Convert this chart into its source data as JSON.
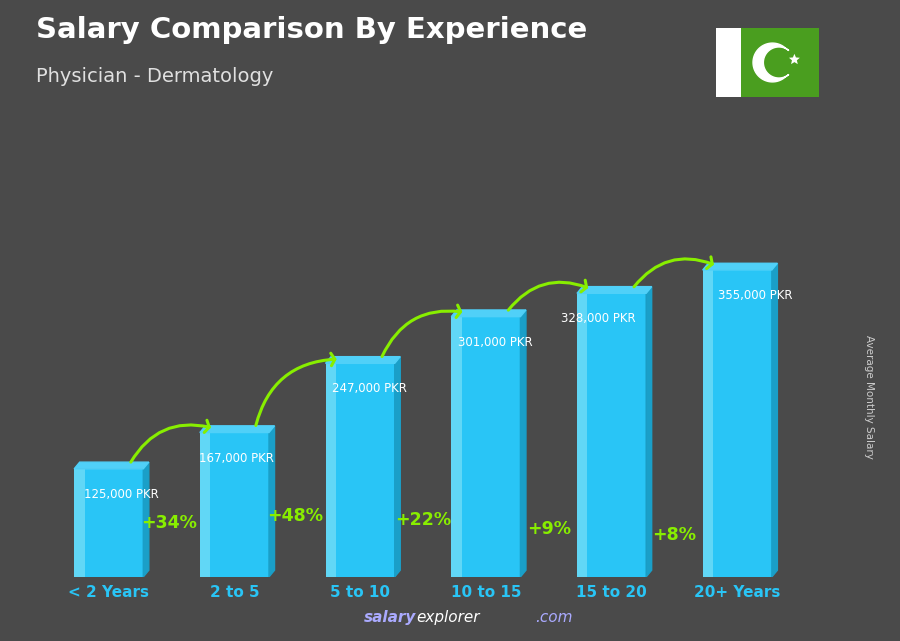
{
  "title": "Salary Comparison By Experience",
  "subtitle": "Physician - Dermatology",
  "categories": [
    "< 2 Years",
    "2 to 5",
    "5 to 10",
    "10 to 15",
    "15 to 20",
    "20+ Years"
  ],
  "values": [
    125000,
    167000,
    247000,
    301000,
    328000,
    355000
  ],
  "labels": [
    "125,000 PKR",
    "167,000 PKR",
    "247,000 PKR",
    "301,000 PKR",
    "328,000 PKR",
    "355,000 PKR"
  ],
  "pct_changes": [
    "+34%",
    "+48%",
    "+22%",
    "+9%",
    "+8%"
  ],
  "bar_color_main": "#29c5f6",
  "bar_color_dark": "#1a9fc8",
  "bar_color_light": "#7adff7",
  "bar_color_top": "#50d0f8",
  "background_color": "#4a4a4a",
  "title_color": "#ffffff",
  "subtitle_color": "#e0e0e0",
  "label_color": "#ffffff",
  "pct_color": "#88ee00",
  "xlabel_color": "#29c5f6",
  "ylabel_text": "Average Monthly Salary",
  "footer_salary": "salary",
  "footer_explorer": "explorer",
  "footer_com": ".com",
  "flag_green": "#4a9e1f",
  "ylim_max": 430000
}
